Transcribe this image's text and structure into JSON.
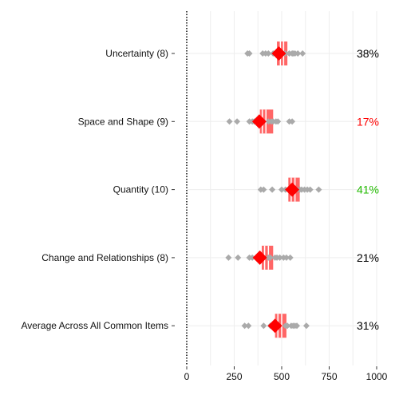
{
  "chart_data": {
    "type": "scatter",
    "title": "",
    "xlabel": "",
    "ylabel": "",
    "xlim": [
      0,
      1000
    ],
    "x_ticks": [
      0,
      250,
      500,
      750,
      1000
    ],
    "x_tick_labels": [
      "0",
      "250",
      "500",
      "750",
      "1000"
    ],
    "grid": "vertical-light",
    "colors": {
      "points": "#aaaaaa",
      "range_band": "#ff6666",
      "mean_marker": "#ff0000",
      "pct_default": "#000000",
      "pct_low": "#ff0000",
      "pct_high": "#22bb00",
      "axis_line": "#000000",
      "grid": "#eeeeee"
    },
    "categories": [
      {
        "label": "Uncertainty (8)",
        "mean": 485,
        "band": [
          475,
          530
        ],
        "band_inner_lines": [
          493,
          510
        ],
        "points": [
          320,
          330,
          400,
          415,
          430,
          455,
          470,
          500,
          520,
          540,
          555,
          560,
          570,
          585,
          610
        ],
        "pct": "38%",
        "pct_level": "default"
      },
      {
        "label": "Space and Shape (9)",
        "mean": 382,
        "band": [
          385,
          455
        ],
        "band_inner_lines": [
          398,
          417
        ],
        "points": [
          225,
          265,
          330,
          345,
          355,
          375,
          395,
          430,
          445,
          455,
          470,
          480,
          540,
          555
        ],
        "pct": "17%",
        "pct_level": "low"
      },
      {
        "label": "Quantity (10)",
        "mean": 555,
        "band": [
          535,
          595
        ],
        "band_inner_lines": [
          550,
          570
        ],
        "points": [
          390,
          405,
          450,
          500,
          520,
          540,
          560,
          580,
          595,
          605,
          620,
          635,
          650,
          695
        ],
        "pct": "41%",
        "pct_level": "high"
      },
      {
        "label": "Change and Relationships (8)",
        "mean": 385,
        "band": [
          395,
          455
        ],
        "band_inner_lines": [
          410,
          430
        ],
        "points": [
          220,
          270,
          330,
          345,
          365,
          380,
          395,
          430,
          440,
          465,
          475,
          490,
          510,
          525,
          545
        ],
        "pct": "21%",
        "pct_level": "default"
      },
      {
        "label": "Average Across All Common Items",
        "mean": 465,
        "band": [
          465,
          525
        ],
        "band_inner_lines": [
          480,
          500
        ],
        "points": [
          305,
          325,
          405,
          440,
          455,
          470,
          520,
          530,
          550,
          560,
          570,
          580,
          630
        ],
        "pct": "31%",
        "pct_level": "default"
      }
    ]
  }
}
